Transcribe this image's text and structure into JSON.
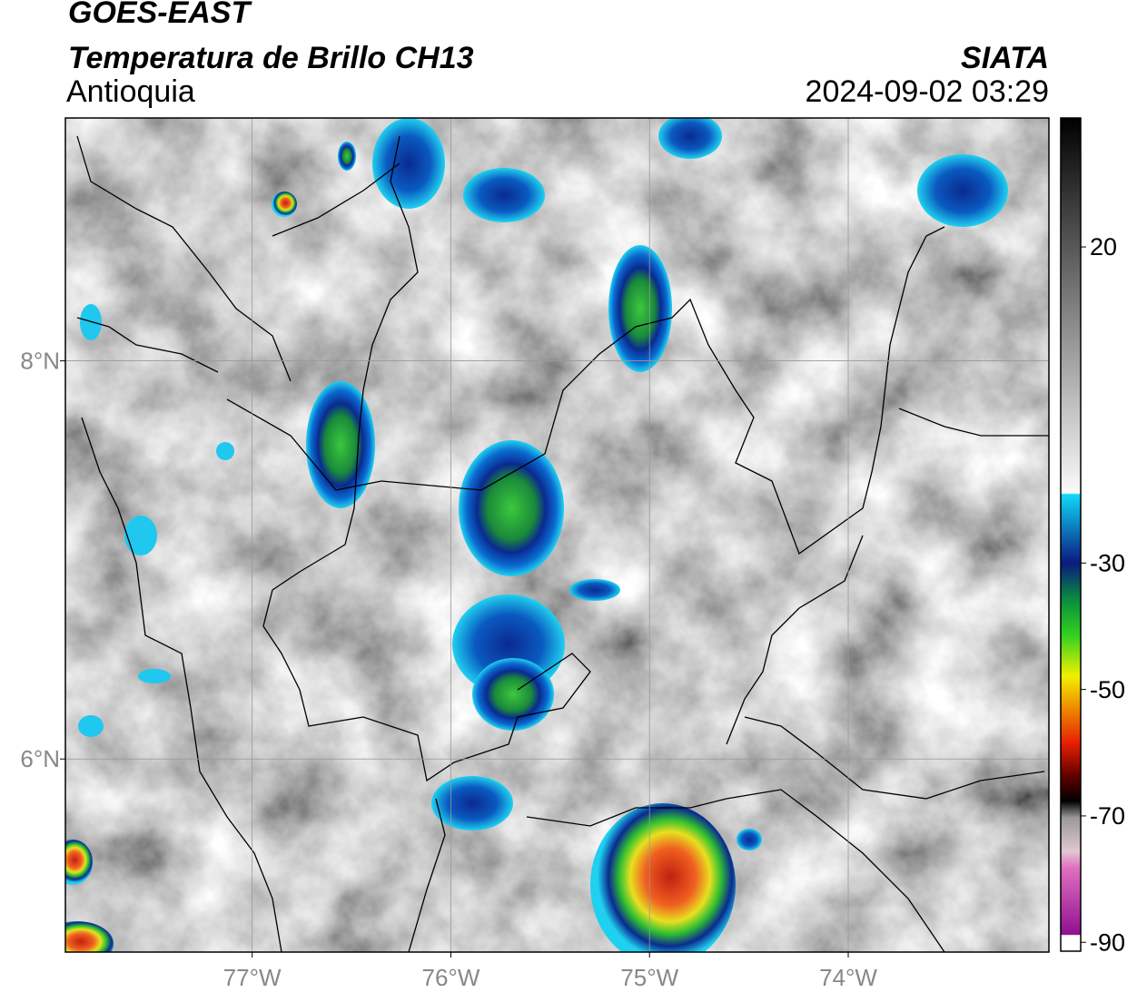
{
  "header": {
    "title": "GOES-EAST",
    "subtitle": "Temperatura de Brillo CH13",
    "credit": "SIATA",
    "region": "Antioquia",
    "timestamp": "2024-09-02 03:29"
  },
  "map": {
    "xlim": [
      -77.94,
      -72.99
    ],
    "ylim": [
      5.03,
      9.22
    ],
    "xticks": [
      {
        "value": -77,
        "label": "77°W"
      },
      {
        "value": -76,
        "label": "76°W"
      },
      {
        "value": -75,
        "label": "75°W"
      },
      {
        "value": -74,
        "label": "74°W"
      }
    ],
    "yticks": [
      {
        "value": 6,
        "label": "6°N"
      },
      {
        "value": 8,
        "label": "8°N"
      }
    ],
    "grid": true
  },
  "colorbar": {
    "lim": [
      -91.4,
      40.4
    ],
    "ticks": [
      20,
      -30,
      -50,
      -70,
      -90
    ]
  }
}
